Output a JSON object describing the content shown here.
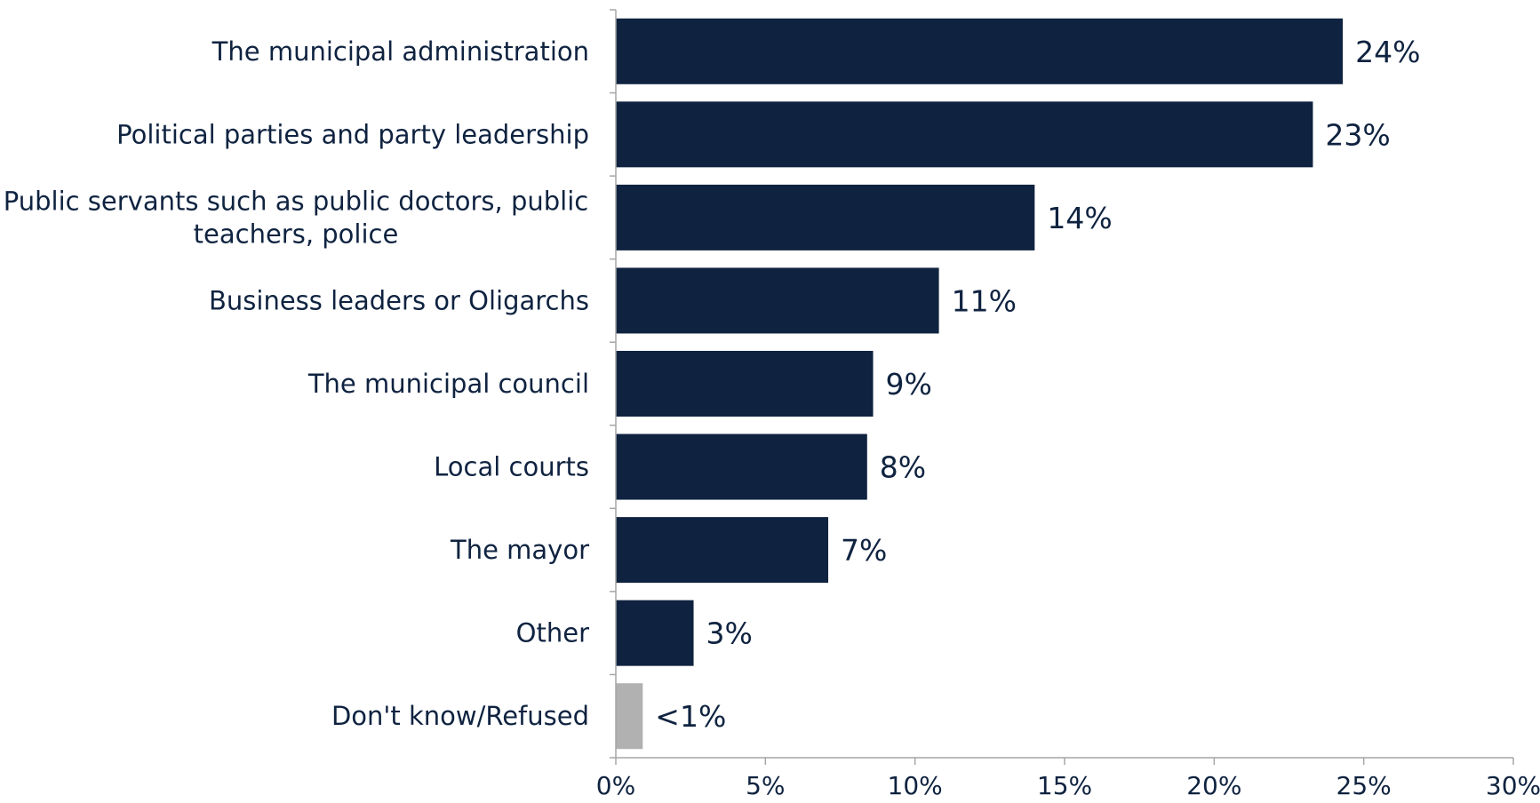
{
  "chart_data": {
    "type": "bar",
    "orientation": "horizontal",
    "categories": [
      [
        "The municipal administration"
      ],
      [
        "Political parties and party leadership"
      ],
      [
        "Public servants such as public doctors, public",
        "teachers, police"
      ],
      [
        "Business leaders or Oligarchs"
      ],
      [
        "The municipal council"
      ],
      [
        "Local courts"
      ],
      [
        "The mayor"
      ],
      [
        "Other"
      ],
      [
        "Don't know/Refused"
      ]
    ],
    "values": [
      24.3,
      23.3,
      14.0,
      10.8,
      8.6,
      8.4,
      7.1,
      2.6,
      0.9
    ],
    "value_labels": [
      "24%",
      "23%",
      "14%",
      "11%",
      "9%",
      "8%",
      "7%",
      "3%",
      "<1%"
    ],
    "bar_colors": [
      "#0f2340",
      "#0f2340",
      "#0f2340",
      "#0f2340",
      "#0f2340",
      "#0f2340",
      "#0f2340",
      "#0f2340",
      "#b1b1b1"
    ],
    "xlim": [
      0,
      30
    ],
    "x_ticks": [
      0,
      5,
      10,
      15,
      20,
      25,
      30
    ],
    "x_tick_labels": [
      "0%",
      "5%",
      "10%",
      "15%",
      "20%",
      "25%",
      "30%"
    ],
    "grid": false,
    "legend": "none"
  }
}
